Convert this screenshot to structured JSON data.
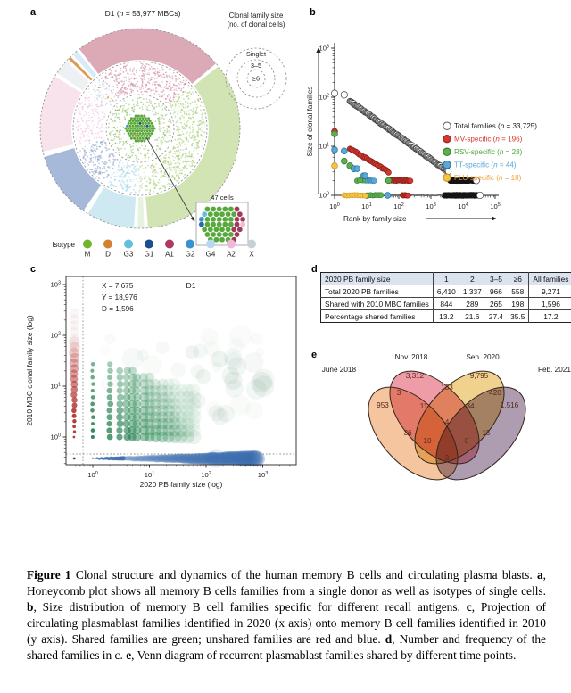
{
  "panels": {
    "a": {
      "label": "a",
      "title": "D1 (n = 53,977 MBCs)",
      "size_legend": {
        "title": [
          "Clonal family size",
          "(no. of clonal cells)"
        ],
        "rings": [
          "Singlet",
          "3–5",
          "≥6"
        ]
      },
      "inset_label": "47 cells",
      "isotype_legend": {
        "title": "Isotype",
        "items": [
          {
            "label": "M",
            "color": "#72b52d"
          },
          {
            "label": "D",
            "color": "#d3832f"
          },
          {
            "label": "G3",
            "color": "#63bfdd"
          },
          {
            "label": "G1",
            "color": "#1c4e8e"
          },
          {
            "label": "A1",
            "color": "#ad3a62"
          },
          {
            "label": "G2",
            "color": "#3c92d0"
          },
          {
            "label": "G4",
            "color": "#b9d7f0"
          },
          {
            "label": "A2",
            "color": "#efb9da"
          },
          {
            "label": "X",
            "color": "#c9d0d4"
          }
        ]
      },
      "ring_sectors": [
        {
          "k": "A1",
          "start": -38,
          "end": 50,
          "fill": "#dcaab6",
          "dot": "#cf8fa3"
        },
        {
          "k": "M",
          "start": 51,
          "end": 176,
          "fill": "#d3e4b4",
          "dot": "#a8cd77"
        },
        {
          "k": "M2",
          "start": 177,
          "end": 182,
          "fill": "#e7f2e2",
          "dot": "#c4dcae"
        },
        {
          "k": "G3",
          "start": 183,
          "end": 212,
          "fill": "#cfe9f3",
          "dot": "#9ed4e8"
        },
        {
          "k": "G1",
          "start": 214,
          "end": 254,
          "fill": "#a7b9d8",
          "dot": "#8da4cb"
        },
        {
          "k": "A2",
          "start": 256,
          "end": 302,
          "fill": "#f8e3ed",
          "dot": "#eec6dd"
        },
        {
          "k": "X",
          "start": 303,
          "end": 313,
          "fill": "#edf1f4",
          "dot": "#c9d2d8"
        },
        {
          "k": "D",
          "start": 313.5,
          "end": 316.5,
          "fill": "#dd9a55",
          "dot": "#d3832f"
        },
        {
          "k": "G4",
          "start": 317,
          "end": 321.5,
          "fill": "#d8ebf7",
          "dot": "#b9d7f0"
        }
      ]
    },
    "b": {
      "label": "b",
      "xlabel": "Rank by family size",
      "ylabel": "Size of clonal families",
      "chart_data": {
        "type": "scatter",
        "x_scale": "log",
        "y_scale": "log",
        "x_exponents": [
          0,
          1,
          2,
          3,
          4,
          5
        ],
        "y_exponents": [
          0,
          1,
          2,
          3
        ],
        "legend": [
          {
            "label": "Total families (n = 33,725)",
            "fill": "#ffffff",
            "edge": "#555555",
            "text": "#1a1a1a"
          },
          {
            "label": "MV-specific (n = 196)",
            "fill": "#d6362e",
            "edge": "#8a211c",
            "text": "#d6362e"
          },
          {
            "label": "RSV-specific (n = 28)",
            "fill": "#5cb04c",
            "edge": "#337026",
            "text": "#4ca63c"
          },
          {
            "label": "TT-specific (n = 44)",
            "fill": "#58a8d8",
            "edge": "#29688f",
            "text": "#58a8d8"
          },
          {
            "label": "FLU-specific (n = 18)",
            "fill": "#f3c63e",
            "edge": "#c08724",
            "text": "#f0a03c"
          }
        ],
        "series": [
          {
            "name": "total",
            "fill": "#ffffff",
            "edge": "#3d3d3d",
            "r": 3.3,
            "points": [
              [
                1,
                120
              ],
              [
                2,
                112
              ],
              [
                26000,
                2
              ],
              [
                33725,
                1
              ]
            ],
            "curves": [
              {
                "x1": 3,
                "y1": 84,
                "x2": 3500,
                "y2": 3,
                "n": 150
              }
            ],
            "runs": [
              {
                "y": 2,
                "x1": 4000,
                "x2": 23000,
                "n": 70,
                "fill": "#151515",
                "edge": "none"
              },
              {
                "y": 1,
                "x1": 2600,
                "x2": 30000,
                "n": 80,
                "fill": "#151515",
                "edge": "none"
              },
              {
                "y": 1,
                "x1": 40,
                "x2": 2300,
                "n": 48,
                "fill": "#666666",
                "edge": "none",
                "r": 1.0
              },
              {
                "y": 1,
                "x1": 3,
                "x2": 35,
                "n": 18,
                "fill": "#444444",
                "edge": "none",
                "r": 0.9
              }
            ]
          },
          {
            "name": "MV-specific",
            "fill": "#d6362e",
            "edge": "#7c1d18",
            "r": 3,
            "points": [
              [
                1,
                20
              ]
            ],
            "curves": [
              {
                "x1": 3,
                "y1": 9,
                "x2": 48,
                "y2": 3,
                "n": 26
              }
            ],
            "runs": [
              {
                "y": 2,
                "x1": 55,
                "x2": 230,
                "n": 26
              },
              {
                "y": 1,
                "x1": 130,
                "x2": 196,
                "n": 8
              }
            ]
          },
          {
            "name": "RSV-specific",
            "fill": "#5cb04c",
            "edge": "#2f6b28",
            "r": 3,
            "points": [
              [
                1,
                18
              ],
              [
                2,
                5
              ],
              [
                3,
                4
              ],
              [
                4,
                3.5
              ],
              [
                48,
                2
              ]
            ],
            "curves": [],
            "runs": [
              {
                "y": 2,
                "x1": 5,
                "x2": 9,
                "n": 4
              },
              {
                "y": 1,
                "x1": 10,
                "x2": 28,
                "n": 8
              }
            ]
          },
          {
            "name": "TT-specific",
            "fill": "#58a8d8",
            "edge": "#2a6d96",
            "r": 3,
            "points": [
              [
                1,
                8.5
              ],
              [
                2,
                8
              ],
              [
                4,
                3.5
              ],
              [
                5,
                3.5
              ],
              [
                8,
                2.5
              ],
              [
                9,
                2.5
              ],
              [
                45,
                1
              ]
            ],
            "curves": [],
            "runs": [
              {
                "y": 2,
                "x1": 11,
                "x2": 17,
                "n": 5
              }
            ]
          },
          {
            "name": "FLU-specific",
            "fill": "#f3c63e",
            "edge": "#c98a28",
            "r": 3,
            "points": [
              [
                1,
                4
              ]
            ],
            "curves": [],
            "runs": [
              {
                "y": 1,
                "x1": 2,
                "x2": 9,
                "n": 9
              }
            ]
          }
        ]
      }
    },
    "c": {
      "label": "c",
      "plot_title": "D1",
      "xlabel": "2020 PB family size (log)",
      "ylabel": "2010 MBC clonal family size (log)",
      "annotation": [
        "X = 7,675",
        "Y = 18,976",
        "D = 1,596"
      ],
      "chart_data": {
        "type": "bubble",
        "x_scale": "log",
        "y_scale": "log",
        "x_exponents": [
          0,
          1,
          2,
          3
        ],
        "y_exponents": [
          0,
          1,
          2,
          3
        ],
        "series_meaning": {
          "green": "families shared between 2020 PB and 2010 MBC",
          "red": "families found only in 2010 MBC (left margin column)",
          "blue": "families found only in 2020 PB (bottom margin row)"
        },
        "colors": {
          "green": "#2e8b57",
          "red": "#b03333",
          "blue": "#3b6cad"
        }
      }
    },
    "d": {
      "label": "d",
      "table": {
        "header": [
          "2020 PB family size",
          "1",
          "2",
          "3–5",
          "≥6",
          "All families"
        ],
        "rows": [
          [
            "Total 2020 PB families",
            "6,410",
            "1,337",
            "966",
            "558",
            "9,271"
          ],
          [
            "Shared with 2010 MBC families",
            "844",
            "289",
            "265",
            "198",
            "1,596"
          ],
          [
            "Percentage shared families",
            "13.2",
            "21.6",
            "27.4",
            "35.5",
            "17.2"
          ]
        ]
      }
    },
    "e": {
      "label": "e",
      "sets": [
        {
          "name": "June 2018",
          "fill": "#f3bd92"
        },
        {
          "name": "Nov. 2018",
          "fill": "#ec8f9c"
        },
        {
          "name": "Sep. 2020",
          "fill": "#eecb7d"
        },
        {
          "name": "Feb. 2021",
          "fill": "#a390a6"
        }
      ],
      "regions": [
        {
          "sets": "June 2018 only",
          "value": "953"
        },
        {
          "sets": "Nov. 2018 only",
          "value": "3,312"
        },
        {
          "sets": "Sep. 2020 only",
          "value": "9,795"
        },
        {
          "sets": "Feb. 2021 only",
          "value": "1,516"
        },
        {
          "sets": "June∩Nov",
          "value": "3"
        },
        {
          "sets": "Nov∩Sep",
          "value": "133"
        },
        {
          "sets": "Sep∩Feb",
          "value": "420"
        },
        {
          "sets": "June∩Nov∩Sep",
          "value": "11"
        },
        {
          "sets": "Nov∩Sep∩Feb",
          "value": "34"
        },
        {
          "sets": "June∩Nov∩Sep∩Feb",
          "value": "4"
        },
        {
          "sets": "June∩Sep",
          "value": "36"
        },
        {
          "sets": "Nov∩Feb",
          "value": "15"
        },
        {
          "sets": "June∩Sep∩Feb",
          "value": "10"
        },
        {
          "sets": "June∩Nov∩Feb",
          "value": "0"
        },
        {
          "sets": "June∩Feb",
          "value": "3"
        }
      ]
    }
  },
  "caption": {
    "segments": [
      {
        "t": "Figure 1",
        "b": true
      },
      {
        "t": " Clonal structure and dynamics of the human memory B cells and circulating plasma blasts. ",
        "b": false
      },
      {
        "t": "a",
        "b": true
      },
      {
        "t": ", Honeycomb plot shows all memory B cells families from a single donor as well as isotypes of single cells. ",
        "b": false
      },
      {
        "t": "b",
        "b": true
      },
      {
        "t": ", Size distribution of memory B cell families specific for different recall antigens. ",
        "b": false
      },
      {
        "t": "c",
        "b": true
      },
      {
        "t": ", Projection of circulating plasmablast families identified in 2020 (x axis) onto memory B cell families identified in 2010 (y axis). Shared families are green; unshared families are red and blue. ",
        "b": false
      },
      {
        "t": "d",
        "b": true
      },
      {
        "t": ", Number and frequency of the shared families in c. ",
        "b": false
      },
      {
        "t": "e",
        "b": true
      },
      {
        "t": ", Venn diagram of recurrent plasmablast families shared by different time points.",
        "b": false
      }
    ]
  }
}
